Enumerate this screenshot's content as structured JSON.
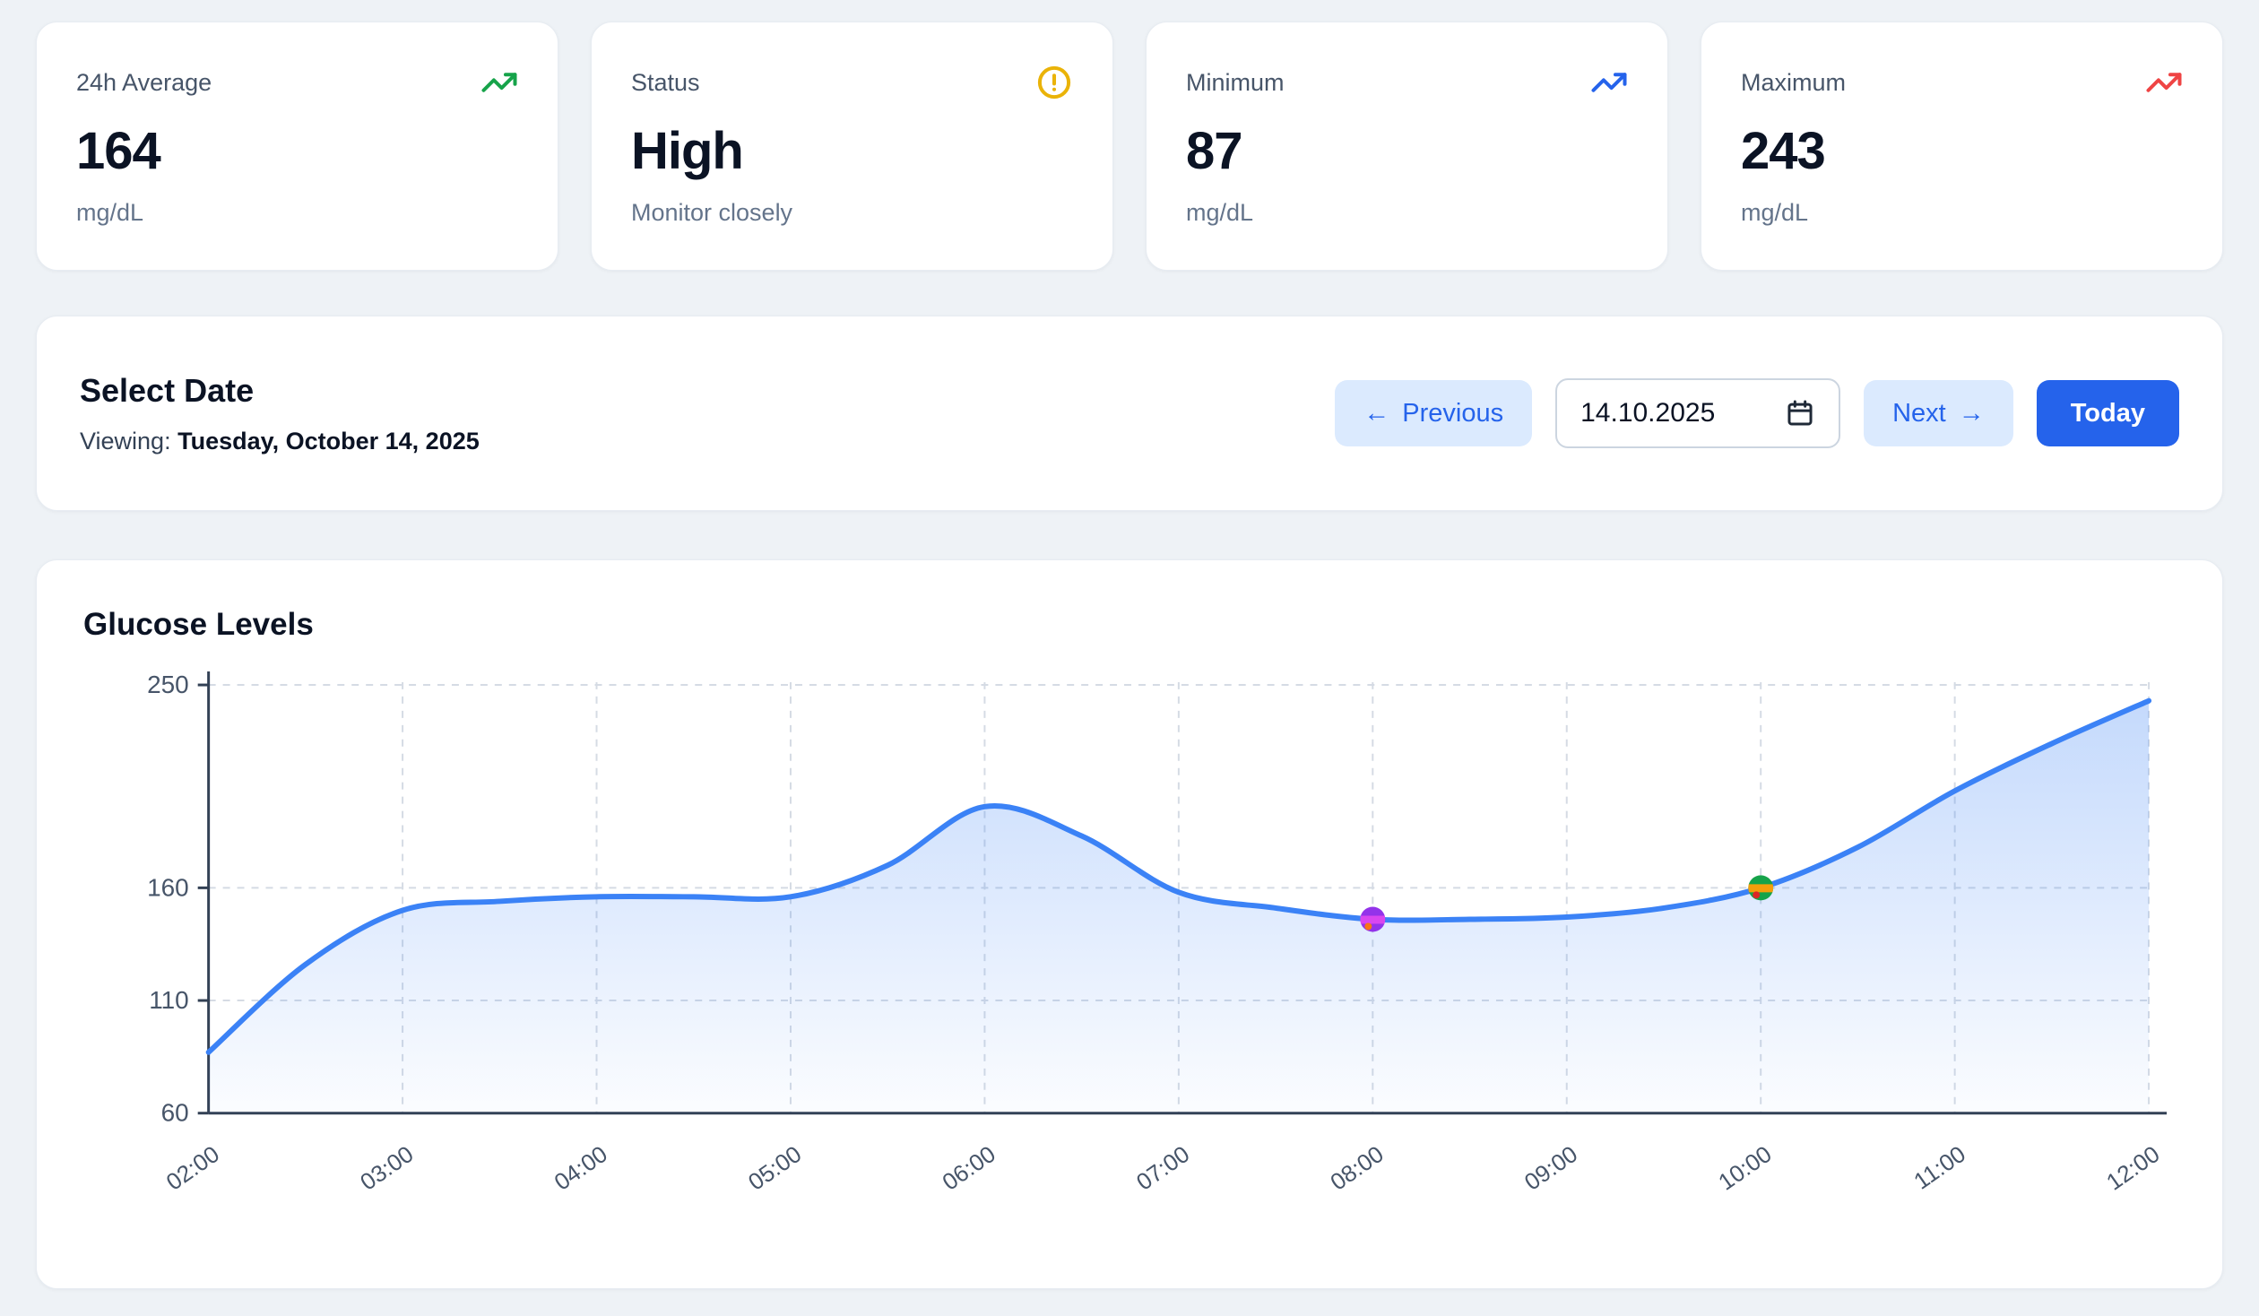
{
  "stats": [
    {
      "label": "24h Average",
      "value": "164",
      "sub": "mg/dL",
      "icon": "trending-up-icon",
      "icon_color": "#16a34a"
    },
    {
      "label": "Status",
      "value": "High",
      "sub": "Monitor closely",
      "icon": "alert-circle-icon",
      "icon_color": "#eab308"
    },
    {
      "label": "Minimum",
      "value": "87",
      "sub": "mg/dL",
      "icon": "trending-up-icon",
      "icon_color": "#2563eb"
    },
    {
      "label": "Maximum",
      "value": "243",
      "sub": "mg/dL",
      "icon": "trending-up-icon",
      "icon_color": "#ef4444"
    }
  ],
  "date_selector": {
    "title": "Select Date",
    "viewing_prefix": "Viewing:",
    "viewing_date": "Tuesday, October 14, 2025",
    "previous_arrow": "←",
    "previous_label": "Previous",
    "date_value": "14.10.2025",
    "next_label": "Next",
    "next_arrow": "→",
    "today_label": "Today"
  },
  "chart_card": {
    "title": "Glucose Levels"
  },
  "chart_data": {
    "type": "line",
    "title": "Glucose Levels",
    "unit": "mg/dL",
    "x_ticks": [
      "02:00",
      "03:00",
      "04:00",
      "05:00",
      "06:00",
      "07:00",
      "08:00",
      "09:00",
      "10:00",
      "11:00",
      "12:00"
    ],
    "y_ticks": [
      60,
      110,
      160,
      250
    ],
    "y_range": [
      60,
      256
    ],
    "x_range_hours": [
      2,
      12
    ],
    "grid": "dashed",
    "legend": "none",
    "series": [
      {
        "name": "Glucose",
        "color": "#3b82f6",
        "points": [
          {
            "time": "02:00",
            "value": 87
          },
          {
            "time": "02:30",
            "value": 126
          },
          {
            "time": "03:00",
            "value": 150
          },
          {
            "time": "03:30",
            "value": 154
          },
          {
            "time": "04:00",
            "value": 156
          },
          {
            "time": "04:30",
            "value": 156
          },
          {
            "time": "05:00",
            "value": 156
          },
          {
            "time": "05:30",
            "value": 170
          },
          {
            "time": "06:00",
            "value": 196
          },
          {
            "time": "06:30",
            "value": 183
          },
          {
            "time": "07:00",
            "value": 158
          },
          {
            "time": "07:30",
            "value": 151
          },
          {
            "time": "08:00",
            "value": 146
          },
          {
            "time": "08:30",
            "value": 146
          },
          {
            "time": "09:00",
            "value": 147
          },
          {
            "time": "09:30",
            "value": 151
          },
          {
            "time": "10:00",
            "value": 160
          },
          {
            "time": "10:30",
            "value": 178
          },
          {
            "time": "11:00",
            "value": 203
          },
          {
            "time": "11:30",
            "value": 224
          },
          {
            "time": "12:00",
            "value": 243
          }
        ]
      }
    ],
    "events": [
      {
        "time": "08:00",
        "value": 146,
        "name": "medication-marker",
        "colors": [
          "#9333ea",
          "#d946ef",
          "#f97316"
        ]
      },
      {
        "time": "10:00",
        "value": 160,
        "name": "meal-marker",
        "colors": [
          "#16a34a",
          "#f59e0b",
          "#dc2626"
        ]
      }
    ]
  }
}
